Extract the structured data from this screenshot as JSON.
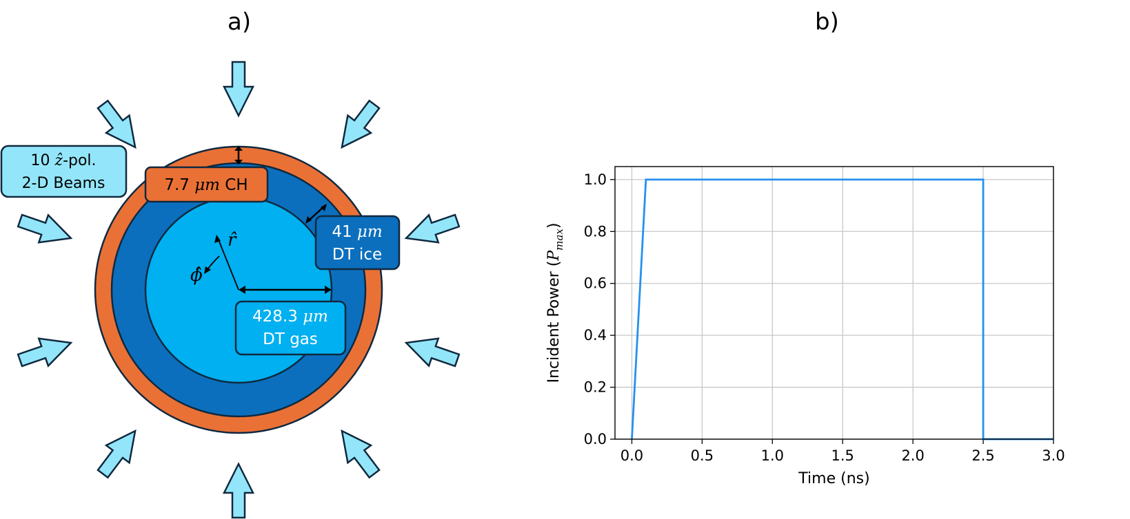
{
  "panels": {
    "a_label": "a)",
    "b_label": "b)"
  },
  "diagram": {
    "beams_box": {
      "line1_pre": "10 ",
      "line1_math": "ẑ",
      "line1_post": "-pol.",
      "line2": "2-D Beams"
    },
    "ch_box": {
      "value": "7.7 ",
      "unit": "μm",
      "material": "CH"
    },
    "ice_box": {
      "value": "41 ",
      "unit": "μm",
      "material": "DT ice"
    },
    "gas_box": {
      "value": "428.3 ",
      "unit": "μm",
      "material": "DT gas"
    },
    "r_hat": "r̂",
    "phi_hat": "ϕ̂",
    "colors": {
      "beam_fill": "#93e6f9",
      "ch_shell": "#ea7136",
      "ice_layer": "#0b6fbd",
      "gas_core": "#00b0f0",
      "outline": "#10293f"
    }
  },
  "chart_data": {
    "type": "line",
    "xlabel": "Time (ns)",
    "ylabel_pre": "Incident Power (",
    "ylabel_sym": "P",
    "ylabel_sub": "max",
    "ylabel_post": ")",
    "xlim": [
      -0.12,
      3.0
    ],
    "ylim": [
      0.0,
      1.05
    ],
    "xticks": [
      "0.0",
      "0.5",
      "1.0",
      "1.5",
      "2.0",
      "2.5",
      "3.0"
    ],
    "yticks": [
      "0.0",
      "0.2",
      "0.4",
      "0.6",
      "0.8",
      "1.0"
    ],
    "grid": true,
    "color": "#2590f0",
    "series": [
      {
        "x": [
          0.0,
          0.1,
          2.5,
          2.5,
          3.0
        ],
        "y": [
          0.0,
          1.0,
          1.0,
          0.0,
          0.0
        ]
      }
    ]
  }
}
